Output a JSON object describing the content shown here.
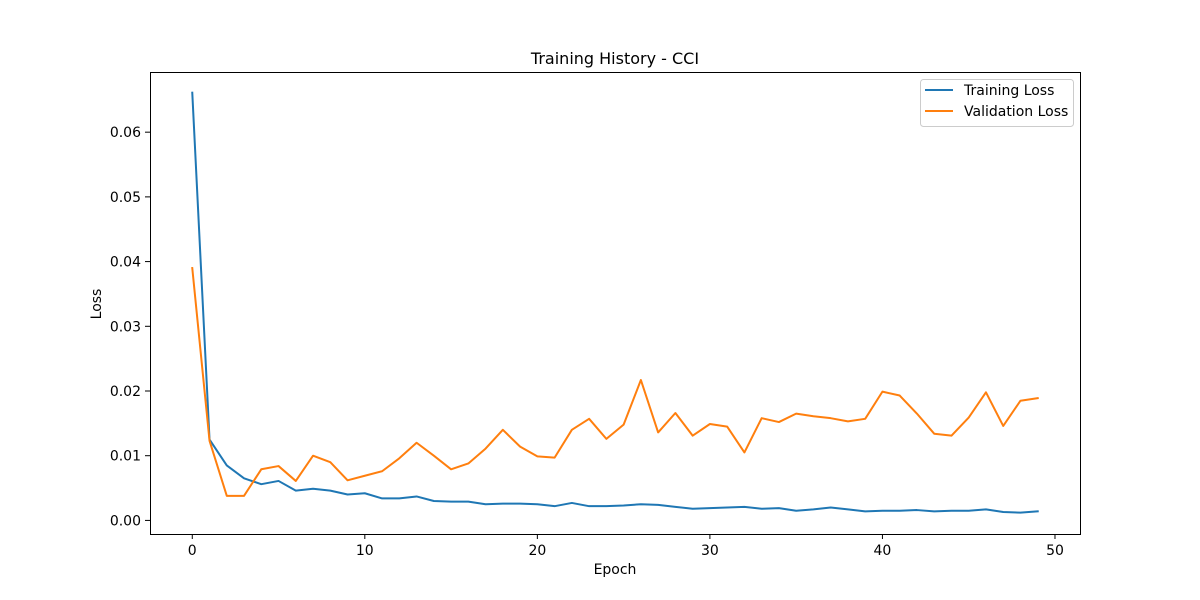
{
  "chart_data": {
    "type": "line",
    "title": "Training History - CCI",
    "xlabel": "Epoch",
    "ylabel": "Loss",
    "xlim": [
      -2.45,
      51.45
    ],
    "ylim": [
      -0.0021,
      0.0693
    ],
    "xticks": [
      0,
      10,
      20,
      30,
      40,
      50
    ],
    "yticks": [
      0.0,
      0.01,
      0.02,
      0.03,
      0.04,
      0.05,
      0.06
    ],
    "ytick_labels": [
      "0.00",
      "0.01",
      "0.02",
      "0.03",
      "0.04",
      "0.05",
      "0.06"
    ],
    "grid": false,
    "legend_position": "top-right",
    "x": [
      0,
      1,
      2,
      3,
      4,
      5,
      6,
      7,
      8,
      9,
      10,
      11,
      12,
      13,
      14,
      15,
      16,
      17,
      18,
      19,
      20,
      21,
      22,
      23,
      24,
      25,
      26,
      27,
      28,
      29,
      30,
      31,
      32,
      33,
      34,
      35,
      36,
      37,
      38,
      39,
      40,
      41,
      42,
      43,
      44,
      45,
      46,
      47,
      48,
      49
    ],
    "series": [
      {
        "name": "Training Loss",
        "color": "#1f77b4",
        "values": [
          0.0661,
          0.0125,
          0.0085,
          0.0065,
          0.0056,
          0.0061,
          0.0046,
          0.0049,
          0.0046,
          0.004,
          0.0042,
          0.0034,
          0.0034,
          0.0037,
          0.003,
          0.0029,
          0.0029,
          0.0025,
          0.0026,
          0.0026,
          0.0025,
          0.0022,
          0.0027,
          0.0022,
          0.0022,
          0.0023,
          0.0025,
          0.0024,
          0.0021,
          0.0018,
          0.0019,
          0.002,
          0.0021,
          0.0018,
          0.0019,
          0.0015,
          0.0017,
          0.002,
          0.0017,
          0.0014,
          0.0015,
          0.0015,
          0.0016,
          0.0014,
          0.0015,
          0.0015,
          0.0017,
          0.0013,
          0.0012,
          0.0014
        ]
      },
      {
        "name": "Validation Loss",
        "color": "#ff7f0e",
        "values": [
          0.039,
          0.0123,
          0.0038,
          0.0038,
          0.0079,
          0.0084,
          0.0061,
          0.01,
          0.009,
          0.0062,
          0.0069,
          0.0076,
          0.0096,
          0.012,
          0.01,
          0.0079,
          0.0088,
          0.0111,
          0.014,
          0.0114,
          0.0099,
          0.0097,
          0.014,
          0.0157,
          0.0126,
          0.0148,
          0.0217,
          0.0136,
          0.0166,
          0.0131,
          0.0149,
          0.0145,
          0.0105,
          0.0158,
          0.0152,
          0.0165,
          0.0161,
          0.0158,
          0.0153,
          0.0157,
          0.0199,
          0.0193,
          0.0165,
          0.0134,
          0.0131,
          0.0159,
          0.0198,
          0.0146,
          0.0185,
          0.0189
        ]
      }
    ]
  }
}
